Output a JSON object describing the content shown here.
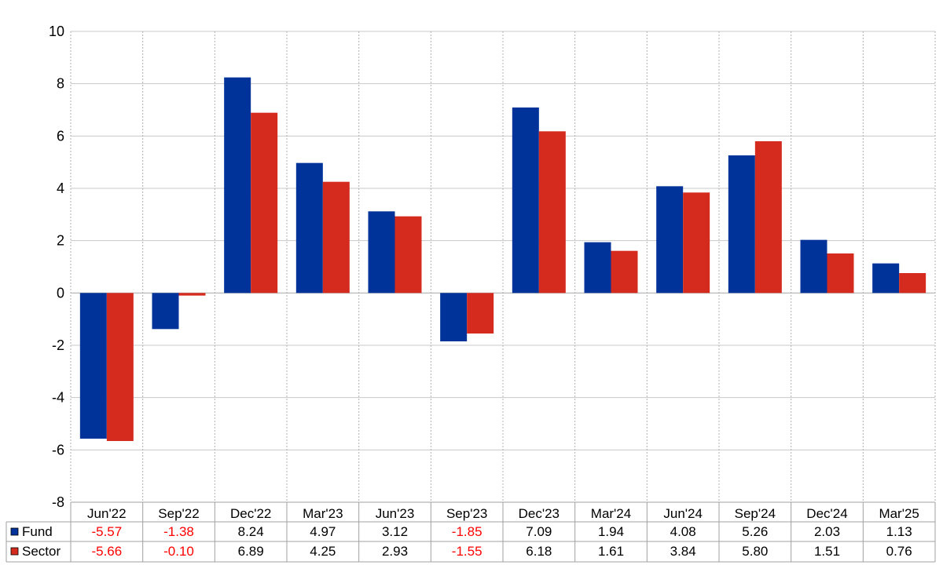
{
  "chart_data": {
    "type": "bar",
    "categories": [
      "Jun'22",
      "Sep'22",
      "Dec'22",
      "Mar'23",
      "Jun'23",
      "Sep'23",
      "Dec'23",
      "Mar'24",
      "Jun'24",
      "Sep'24",
      "Dec'24",
      "Mar'25"
    ],
    "series": [
      {
        "name": "Fund",
        "color": "#003399",
        "values": [
          -5.57,
          -1.38,
          8.24,
          4.97,
          3.12,
          -1.85,
          7.09,
          1.94,
          4.08,
          5.26,
          2.03,
          1.13
        ],
        "labels": [
          "-5.57",
          "-1.38",
          "8.24",
          "4.97",
          "3.12",
          "-1.85",
          "7.09",
          "1.94",
          "4.08",
          "5.26",
          "2.03",
          "1.13"
        ]
      },
      {
        "name": "Sector",
        "color": "#d52b1e",
        "values": [
          -5.66,
          -0.1,
          6.89,
          4.25,
          2.93,
          -1.55,
          6.18,
          1.61,
          3.84,
          5.8,
          1.51,
          0.76
        ],
        "labels": [
          "-5.66",
          "-0.10",
          "6.89",
          "4.25",
          "2.93",
          "-1.55",
          "6.18",
          "1.61",
          "3.84",
          "5.80",
          "1.51",
          "0.76"
        ]
      }
    ],
    "ylim": [
      -8,
      10
    ],
    "yticks": [
      "10",
      "8",
      "6",
      "4",
      "2",
      "0",
      "-2",
      "-4",
      "-6",
      "-8"
    ],
    "grid": true,
    "legend": "bottom-left data table",
    "negative_label_color": "#ff0000"
  }
}
